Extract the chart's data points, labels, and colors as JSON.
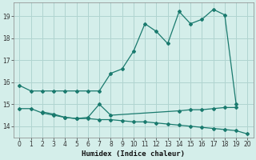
{
  "xlabel": "Humidex (Indice chaleur)",
  "background_color": "#d4eeea",
  "grid_color": "#b0d4d0",
  "line_color": "#1a7a6e",
  "xlim": [
    -0.5,
    20.5
  ],
  "ylim": [
    13.5,
    19.6
  ],
  "yticks": [
    14,
    15,
    16,
    17,
    18,
    19
  ],
  "xticks": [
    0,
    1,
    2,
    3,
    4,
    5,
    6,
    7,
    8,
    9,
    10,
    11,
    12,
    13,
    14,
    15,
    16,
    17,
    18,
    19,
    20
  ],
  "line1_x": [
    0,
    1,
    2,
    3,
    4,
    5,
    6,
    7,
    8,
    9,
    10,
    11,
    12,
    13,
    14,
    15,
    16,
    17,
    18,
    19
  ],
  "line1_y": [
    15.85,
    15.6,
    15.6,
    15.6,
    15.6,
    15.6,
    15.6,
    15.6,
    16.4,
    16.6,
    17.4,
    18.65,
    18.3,
    17.75,
    19.2,
    18.65,
    18.85,
    19.3,
    19.05,
    15.0
  ],
  "line2_x": [
    0,
    1,
    2,
    3,
    4,
    5,
    6,
    7,
    8,
    9,
    10,
    11,
    12,
    13,
    14,
    15,
    16,
    17,
    18,
    19,
    20
  ],
  "line2_y": [
    14.8,
    14.8,
    14.6,
    14.5,
    14.4,
    14.35,
    14.35,
    14.3,
    14.3,
    14.25,
    14.2,
    14.2,
    14.15,
    14.1,
    14.05,
    14.0,
    13.95,
    13.9,
    13.85,
    13.8,
    13.65
  ],
  "line3_x": [
    2,
    3,
    4,
    5,
    6,
    7,
    8,
    14,
    15,
    16,
    17,
    18,
    19
  ],
  "line3_y": [
    14.65,
    14.55,
    14.4,
    14.35,
    14.4,
    15.0,
    14.5,
    14.7,
    14.75,
    14.75,
    14.8,
    14.85,
    14.85
  ]
}
